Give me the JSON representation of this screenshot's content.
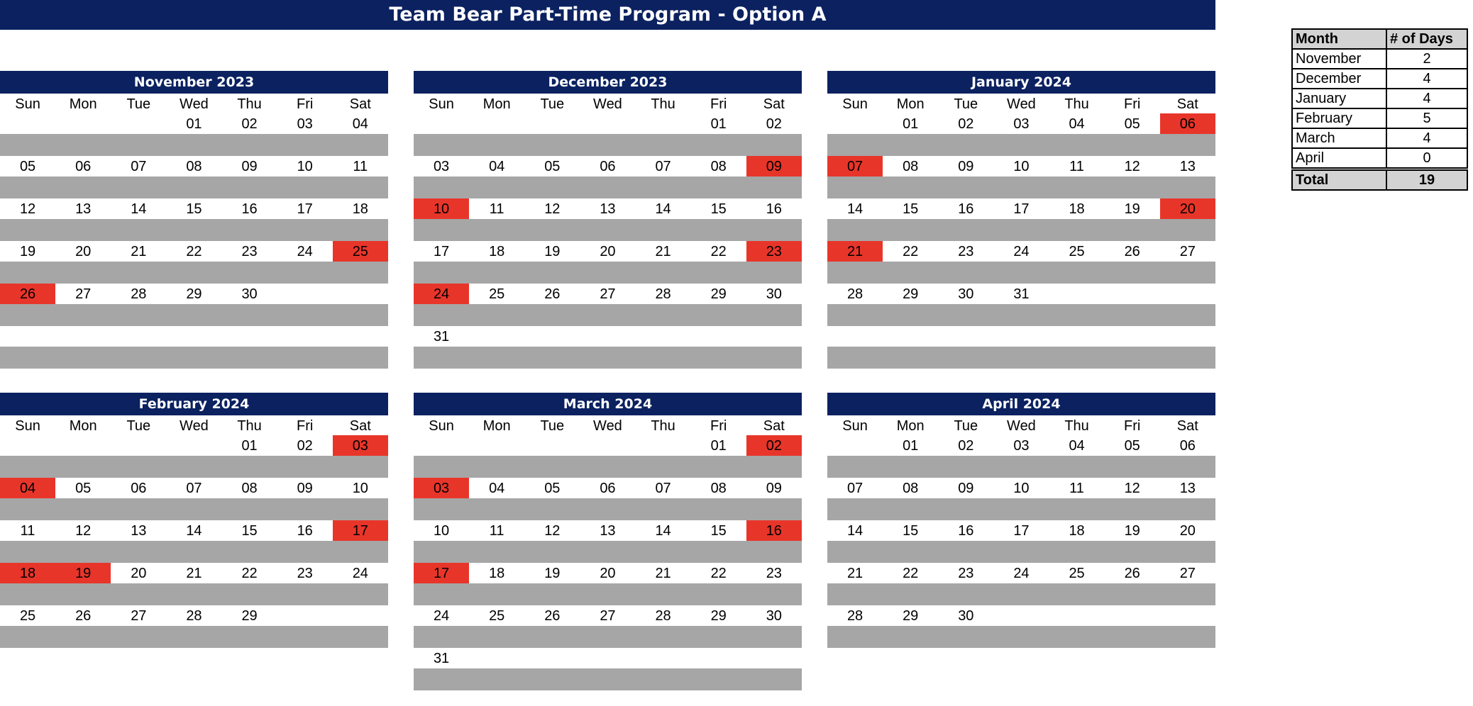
{
  "title": "Team Bear Part-Time Program - Option A",
  "highlight_color": "#e8352a",
  "header_color": "#0b2160",
  "band_color": "#a6a6a6",
  "weekdays": [
    "Sun",
    "Mon",
    "Tue",
    "Wed",
    "Thu",
    "Fri",
    "Sat"
  ],
  "months": [
    {
      "name": "November 2023",
      "weeks": [
        [
          "",
          "",
          "",
          "01",
          "02",
          "03",
          "04"
        ],
        [
          "05",
          "06",
          "07",
          "08",
          "09",
          "10",
          "11"
        ],
        [
          "12",
          "13",
          "14",
          "15",
          "16",
          "17",
          "18"
        ],
        [
          "19",
          "20",
          "21",
          "22",
          "23",
          "24",
          "25"
        ],
        [
          "26",
          "27",
          "28",
          "29",
          "30",
          "",
          ""
        ],
        [
          "",
          "",
          "",
          "",
          "",
          "",
          ""
        ]
      ],
      "highlights": [
        "25",
        "26"
      ]
    },
    {
      "name": "December 2023",
      "weeks": [
        [
          "",
          "",
          "",
          "",
          "",
          "01",
          "02"
        ],
        [
          "03",
          "04",
          "05",
          "06",
          "07",
          "08",
          "09"
        ],
        [
          "10",
          "11",
          "12",
          "13",
          "14",
          "15",
          "16"
        ],
        [
          "17",
          "18",
          "19",
          "20",
          "21",
          "22",
          "23"
        ],
        [
          "24",
          "25",
          "26",
          "27",
          "28",
          "29",
          "30"
        ],
        [
          "31",
          "",
          "",
          "",
          "",
          "",
          ""
        ]
      ],
      "highlights": [
        "09",
        "10",
        "23",
        "24"
      ]
    },
    {
      "name": "January 2024",
      "weeks": [
        [
          "",
          "01",
          "02",
          "03",
          "04",
          "05",
          "06"
        ],
        [
          "07",
          "08",
          "09",
          "10",
          "11",
          "12",
          "13"
        ],
        [
          "14",
          "15",
          "16",
          "17",
          "18",
          "19",
          "20"
        ],
        [
          "21",
          "22",
          "23",
          "24",
          "25",
          "26",
          "27"
        ],
        [
          "28",
          "29",
          "30",
          "31",
          "",
          "",
          ""
        ],
        [
          "",
          "",
          "",
          "",
          "",
          "",
          ""
        ]
      ],
      "highlights": [
        "06",
        "07",
        "20",
        "21"
      ]
    },
    {
      "name": "February 2024",
      "weeks": [
        [
          "",
          "",
          "",
          "",
          "01",
          "02",
          "03"
        ],
        [
          "04",
          "05",
          "06",
          "07",
          "08",
          "09",
          "10"
        ],
        [
          "11",
          "12",
          "13",
          "14",
          "15",
          "16",
          "17"
        ],
        [
          "18",
          "19",
          "20",
          "21",
          "22",
          "23",
          "24"
        ],
        [
          "25",
          "26",
          "27",
          "28",
          "29",
          "",
          ""
        ]
      ],
      "highlights": [
        "03",
        "04",
        "17",
        "18",
        "19"
      ]
    },
    {
      "name": "March 2024",
      "weeks": [
        [
          "",
          "",
          "",
          "",
          "",
          "01",
          "02"
        ],
        [
          "03",
          "04",
          "05",
          "06",
          "07",
          "08",
          "09"
        ],
        [
          "10",
          "11",
          "12",
          "13",
          "14",
          "15",
          "16"
        ],
        [
          "17",
          "18",
          "19",
          "20",
          "21",
          "22",
          "23"
        ],
        [
          "24",
          "25",
          "26",
          "27",
          "28",
          "29",
          "30"
        ],
        [
          "31",
          "",
          "",
          "",
          "",
          "",
          ""
        ]
      ],
      "highlights": [
        "02",
        "03",
        "16",
        "17"
      ]
    },
    {
      "name": "April 2024",
      "weeks": [
        [
          "",
          "01",
          "02",
          "03",
          "04",
          "05",
          "06"
        ],
        [
          "07",
          "08",
          "09",
          "10",
          "11",
          "12",
          "13"
        ],
        [
          "14",
          "15",
          "16",
          "17",
          "18",
          "19",
          "20"
        ],
        [
          "21",
          "22",
          "23",
          "24",
          "25",
          "26",
          "27"
        ],
        [
          "28",
          "29",
          "30",
          "",
          "",
          "",
          ""
        ]
      ],
      "highlights": []
    }
  ],
  "summary": {
    "header_month": "Month",
    "header_days": "# of Days",
    "rows": [
      {
        "month": "November",
        "days": "2"
      },
      {
        "month": "December",
        "days": "4"
      },
      {
        "month": "January",
        "days": "4"
      },
      {
        "month": "February",
        "days": "5"
      },
      {
        "month": "March",
        "days": "4"
      },
      {
        "month": "April",
        "days": "0"
      }
    ],
    "total_label": "Total",
    "total_value": "19"
  }
}
